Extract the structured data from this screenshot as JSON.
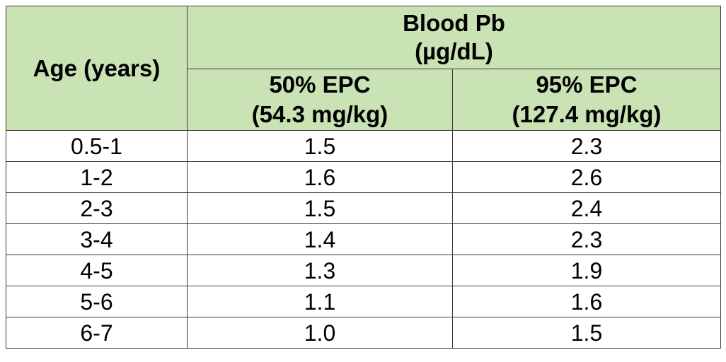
{
  "chart_data": {
    "type": "table",
    "columns": [
      {
        "group": "",
        "header": "Age (years)"
      },
      {
        "group": "Blood Pb (µg/dL)",
        "header": "50% EPC (54.3 mg/kg)"
      },
      {
        "group": "Blood Pb (µg/dL)",
        "header": "95% EPC (127.4 mg/kg)"
      }
    ],
    "rows": [
      [
        "0.5-1",
        "1.5",
        "2.3"
      ],
      [
        "1-2",
        "1.6",
        "2.6"
      ],
      [
        "2-3",
        "1.5",
        "2.4"
      ],
      [
        "3-4",
        "1.4",
        "2.3"
      ],
      [
        "4-5",
        "1.3",
        "1.9"
      ],
      [
        "5-6",
        "1.1",
        "1.6"
      ],
      [
        "6-7",
        "1.0",
        "1.5"
      ]
    ]
  },
  "table": {
    "age_header": "Age (years)",
    "group_header_line1": "Blood Pb",
    "group_header_line2": "(µg/dL)",
    "col1_line1": "50% EPC",
    "col1_line2": "(54.3 mg/kg)",
    "col2_line1": "95% EPC",
    "col2_line2": "(127.4 mg/kg)",
    "header_bg": "#c9e3b4",
    "border_color": "#3a3a3a"
  }
}
